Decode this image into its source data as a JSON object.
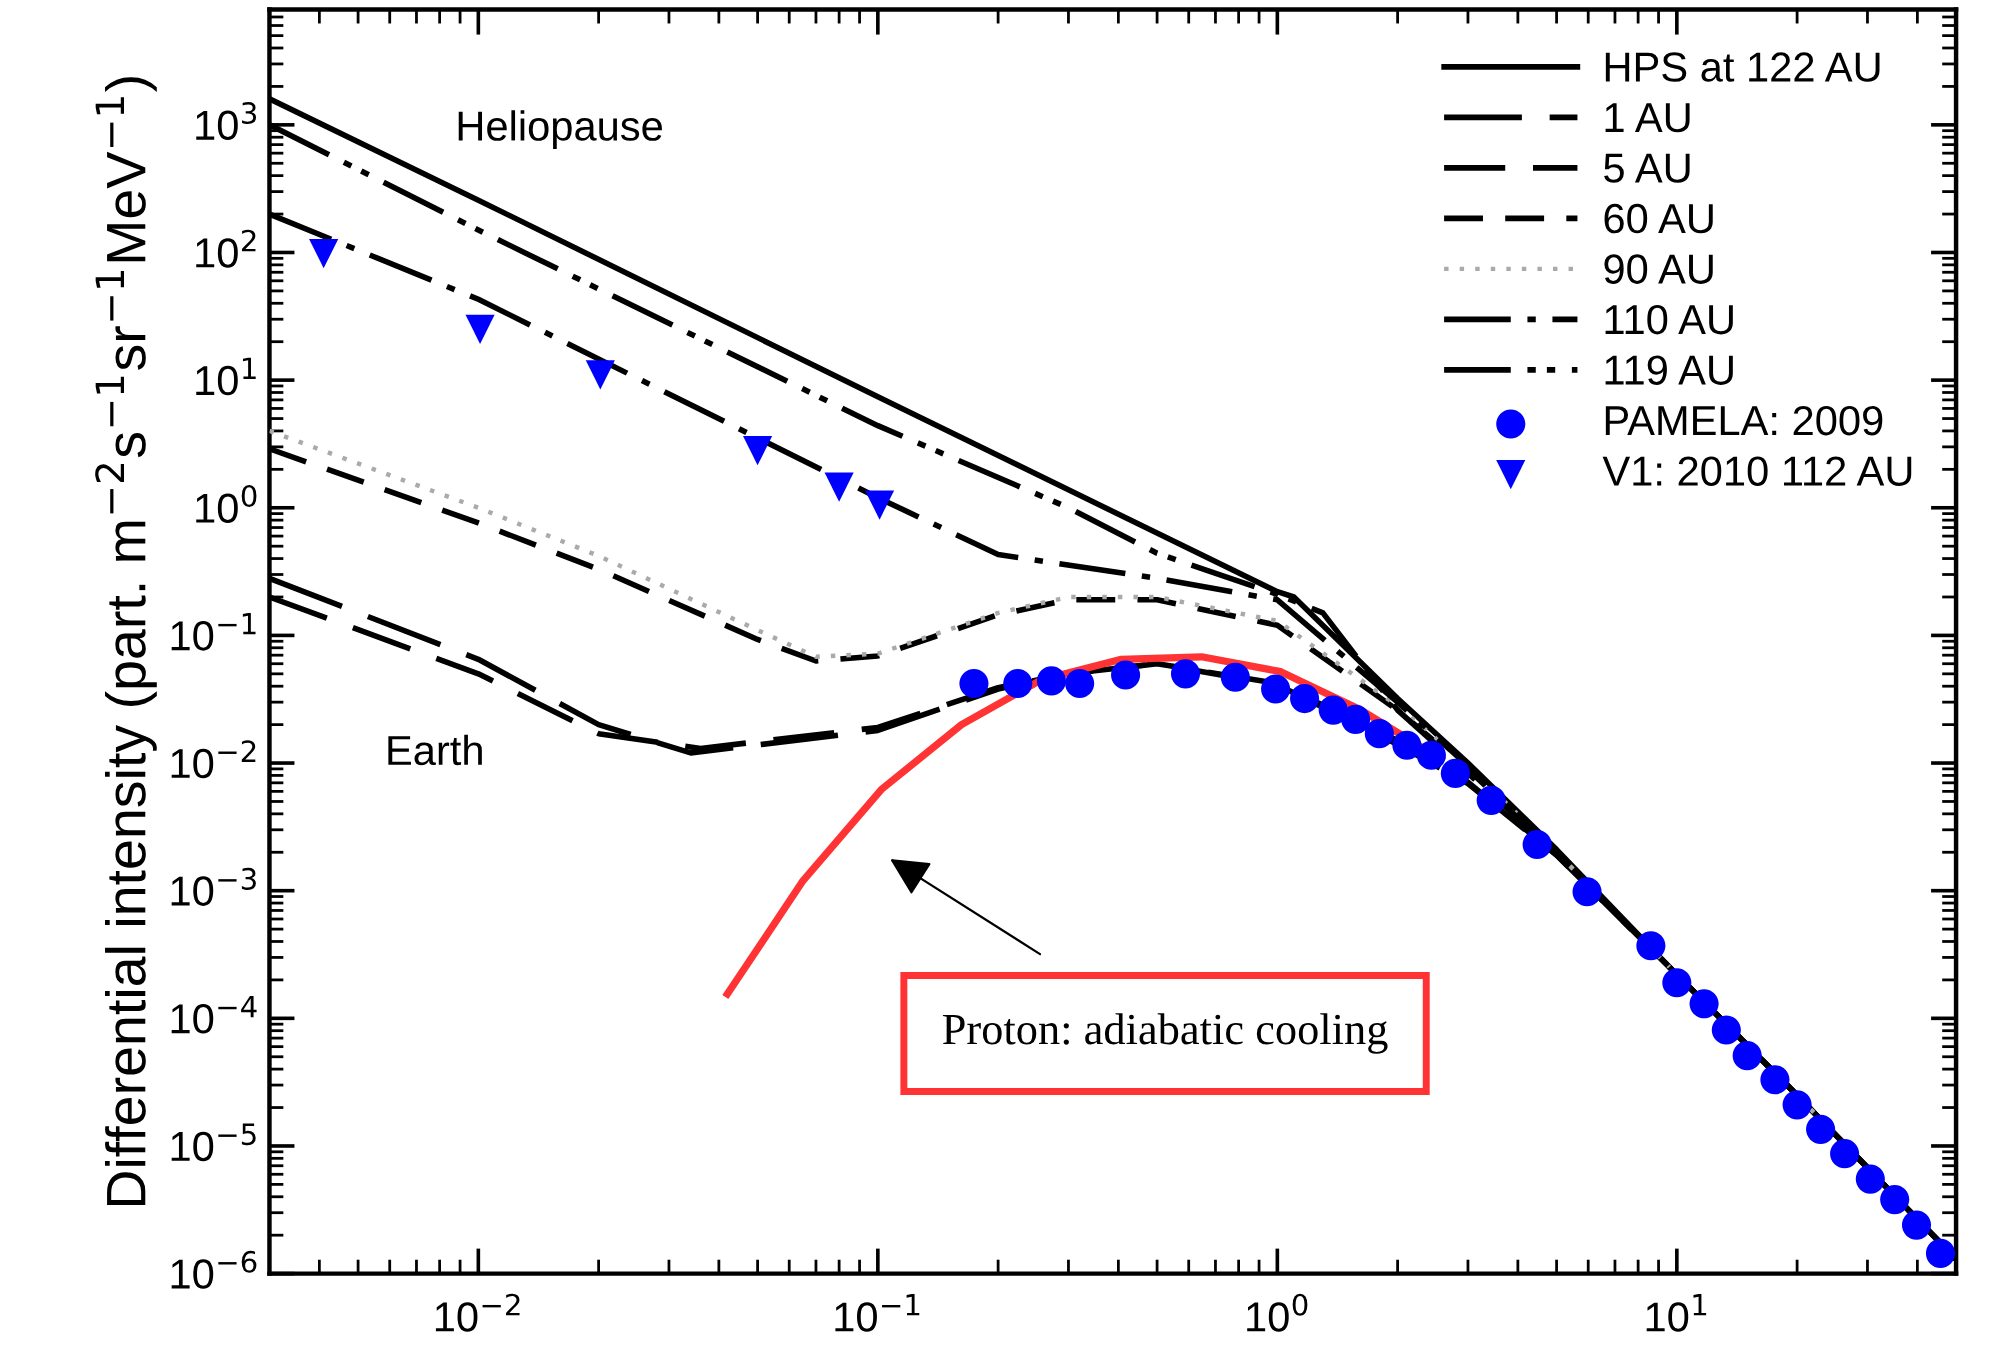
{
  "chart_data": {
    "type": "line",
    "ylabel": "Differential intensity (part. m$^{−2}$s$^{−1}$sr$^{−1}$MeV$^{−1}$)",
    "log": "xy",
    "xlim": [
      0.003,
      50
    ],
    "ylim": [
      1e-06,
      8000
    ],
    "xticks": [
      {
        "value": 0.01,
        "label": "10$^{−2}$"
      },
      {
        "value": 0.1,
        "label": "10$^{−1}$"
      },
      {
        "value": 1,
        "label": "10$^{0}$"
      },
      {
        "value": 10,
        "label": "10$^{1}$"
      }
    ],
    "yticks": [
      {
        "value": 1e-06,
        "label": "10$^{−6}$"
      },
      {
        "value": 1e-05,
        "label": "10$^{−5}$"
      },
      {
        "value": 0.0001,
        "label": "10$^{−4}$"
      },
      {
        "value": 0.001,
        "label": "10$^{−3}$"
      },
      {
        "value": 0.01,
        "label": "10$^{−2}$"
      },
      {
        "value": 0.1,
        "label": "10$^{−1}$"
      },
      {
        "value": 1,
        "label": "10$^{0}$"
      },
      {
        "value": 10,
        "label": "10$^{1}$"
      },
      {
        "value": 100,
        "label": "10$^{2}$"
      },
      {
        "value": 1000,
        "label": "10$^{3}$"
      }
    ],
    "grid": false,
    "legend": "top right",
    "series": [
      {
        "name": "HPS at 122 AU",
        "color": "#000000",
        "line_style": "solid",
        "x": [
          0.003,
          0.01,
          0.1,
          1,
          1.1,
          2,
          3,
          5,
          10,
          20,
          50
        ],
        "values": [
          1600,
          257,
          7.4,
          0.22,
          0.2,
          0.032,
          0.01,
          0.0021,
          0.00022,
          2.5e-05,
          1.3e-06
        ]
      },
      {
        "name": "1 AU",
        "color": "#000000",
        "line_style": "dashed",
        "x": [
          0.003,
          0.01,
          0.02,
          0.034,
          0.1,
          0.2,
          0.3,
          0.5,
          1,
          2,
          3,
          5,
          10,
          20,
          50
        ],
        "values": [
          0.28,
          0.065,
          0.02,
          0.012,
          0.018,
          0.038,
          0.05,
          0.06,
          0.041,
          0.014,
          0.0069,
          0.0019,
          0.00022,
          2.5e-05,
          1.3e-06
        ]
      },
      {
        "name": "5 AU",
        "color": "#000000",
        "line_style": "dashed",
        "x": [
          0.003,
          0.01,
          0.02,
          0.036,
          0.1,
          0.2,
          0.3,
          0.5,
          1,
          2,
          3,
          5,
          10,
          20,
          50
        ],
        "values": [
          0.2,
          0.05,
          0.017,
          0.013,
          0.019,
          0.039,
          0.05,
          0.06,
          0.042,
          0.015,
          0.0071,
          0.0019,
          0.00022,
          2.5e-05,
          1.3e-06
        ]
      },
      {
        "name": "60 AU",
        "color": "#000000",
        "line_style": "dashed",
        "x": [
          0.003,
          0.01,
          0.02,
          0.05,
          0.07,
          0.1,
          0.2,
          0.3,
          0.5,
          1,
          2,
          3,
          5,
          10,
          20,
          50
        ],
        "values": [
          2.9,
          0.76,
          0.33,
          0.093,
          0.063,
          0.069,
          0.145,
          0.19,
          0.19,
          0.12,
          0.026,
          0.0089,
          0.002,
          0.00022,
          2.5e-05,
          1.3e-06
        ]
      },
      {
        "name": "90 AU",
        "color": "#aaaaaa",
        "line_style": "dotted",
        "x": [
          0.003,
          0.01,
          0.02,
          0.05,
          0.07,
          0.1,
          0.2,
          0.3,
          0.5,
          1,
          2,
          3,
          5,
          10,
          20,
          50
        ],
        "values": [
          4,
          1.0,
          0.42,
          0.11,
          0.068,
          0.072,
          0.15,
          0.2,
          0.2,
          0.13,
          0.028,
          0.0095,
          0.002,
          0.00022,
          2.5e-05,
          1.3e-06
        ]
      },
      {
        "name": "110 AU",
        "color": "#000000",
        "line_style": "dashdot",
        "x": [
          0.003,
          0.01,
          0.1,
          0.2,
          0.5,
          1,
          2,
          3,
          5,
          10,
          20,
          50
        ],
        "values": [
          200,
          43,
          1.2,
          0.43,
          0.28,
          0.19,
          0.03,
          0.0095,
          0.002,
          0.00022,
          2.5e-05,
          1.3e-06
        ]
      },
      {
        "name": "119 AU",
        "color": "#000000",
        "line_style": "dashdotdot",
        "x": [
          0.003,
          0.01,
          0.1,
          0.3,
          0.5,
          1,
          1.3,
          2,
          3,
          5,
          10,
          20,
          50
        ],
        "values": [
          1000,
          150,
          4.4,
          1.0,
          0.44,
          0.21,
          0.15,
          0.026,
          0.0083,
          0.002,
          0.00022,
          2.5e-05,
          1.3e-06
        ]
      },
      {
        "name": "PAMELA: 2009",
        "type": "scatter",
        "marker": "circle",
        "color": "#0000ff",
        "x": [
          0.174,
          0.224,
          0.272,
          0.32,
          0.417,
          0.589,
          0.785,
          0.99,
          1.17,
          1.38,
          1.57,
          1.8,
          2.11,
          2.43,
          2.79,
          3.43,
          4.47,
          5.96,
          8.61,
          10,
          11.7,
          13.3,
          15.0,
          17.6,
          20.0,
          22.9,
          26.3,
          30.5,
          35.1,
          39.8,
          45.7
        ],
        "values": [
          0.042,
          0.042,
          0.044,
          0.042,
          0.049,
          0.05,
          0.047,
          0.038,
          0.032,
          0.026,
          0.022,
          0.017,
          0.0138,
          0.0115,
          0.0083,
          0.0051,
          0.0023,
          0.00098,
          0.00037,
          0.00019,
          0.00013,
          8.1e-05,
          5.1e-05,
          3.3e-05,
          2.1e-05,
          1.35e-05,
          8.7e-06,
          5.5e-06,
          3.8e-06,
          2.4e-06,
          1.44e-06
        ]
      },
      {
        "name": "V1: 2010 112 AU",
        "type": "scatter",
        "marker": "triangle",
        "color": "#0000ff",
        "x": [
          0.0041,
          0.0101,
          0.0202,
          0.05,
          0.08,
          0.101
        ],
        "values": [
          98,
          25,
          11,
          2.8,
          1.45,
          1.05
        ]
      },
      {
        "color": "#ff3333",
        "line_style": "solid",
        "x": [
          0.042,
          0.065,
          0.102,
          0.162,
          0.257,
          0.407,
          0.646,
          1.02,
          1.62,
          2.57
        ],
        "values": [
          0.000155,
          0.0012,
          0.0062,
          0.02,
          0.045,
          0.065,
          0.068,
          0.052,
          0.026,
          0.0107
        ]
      }
    ],
    "annotations": [
      "Heliopause",
      "Earth",
      "Proton: adiabatic cooling"
    ]
  }
}
